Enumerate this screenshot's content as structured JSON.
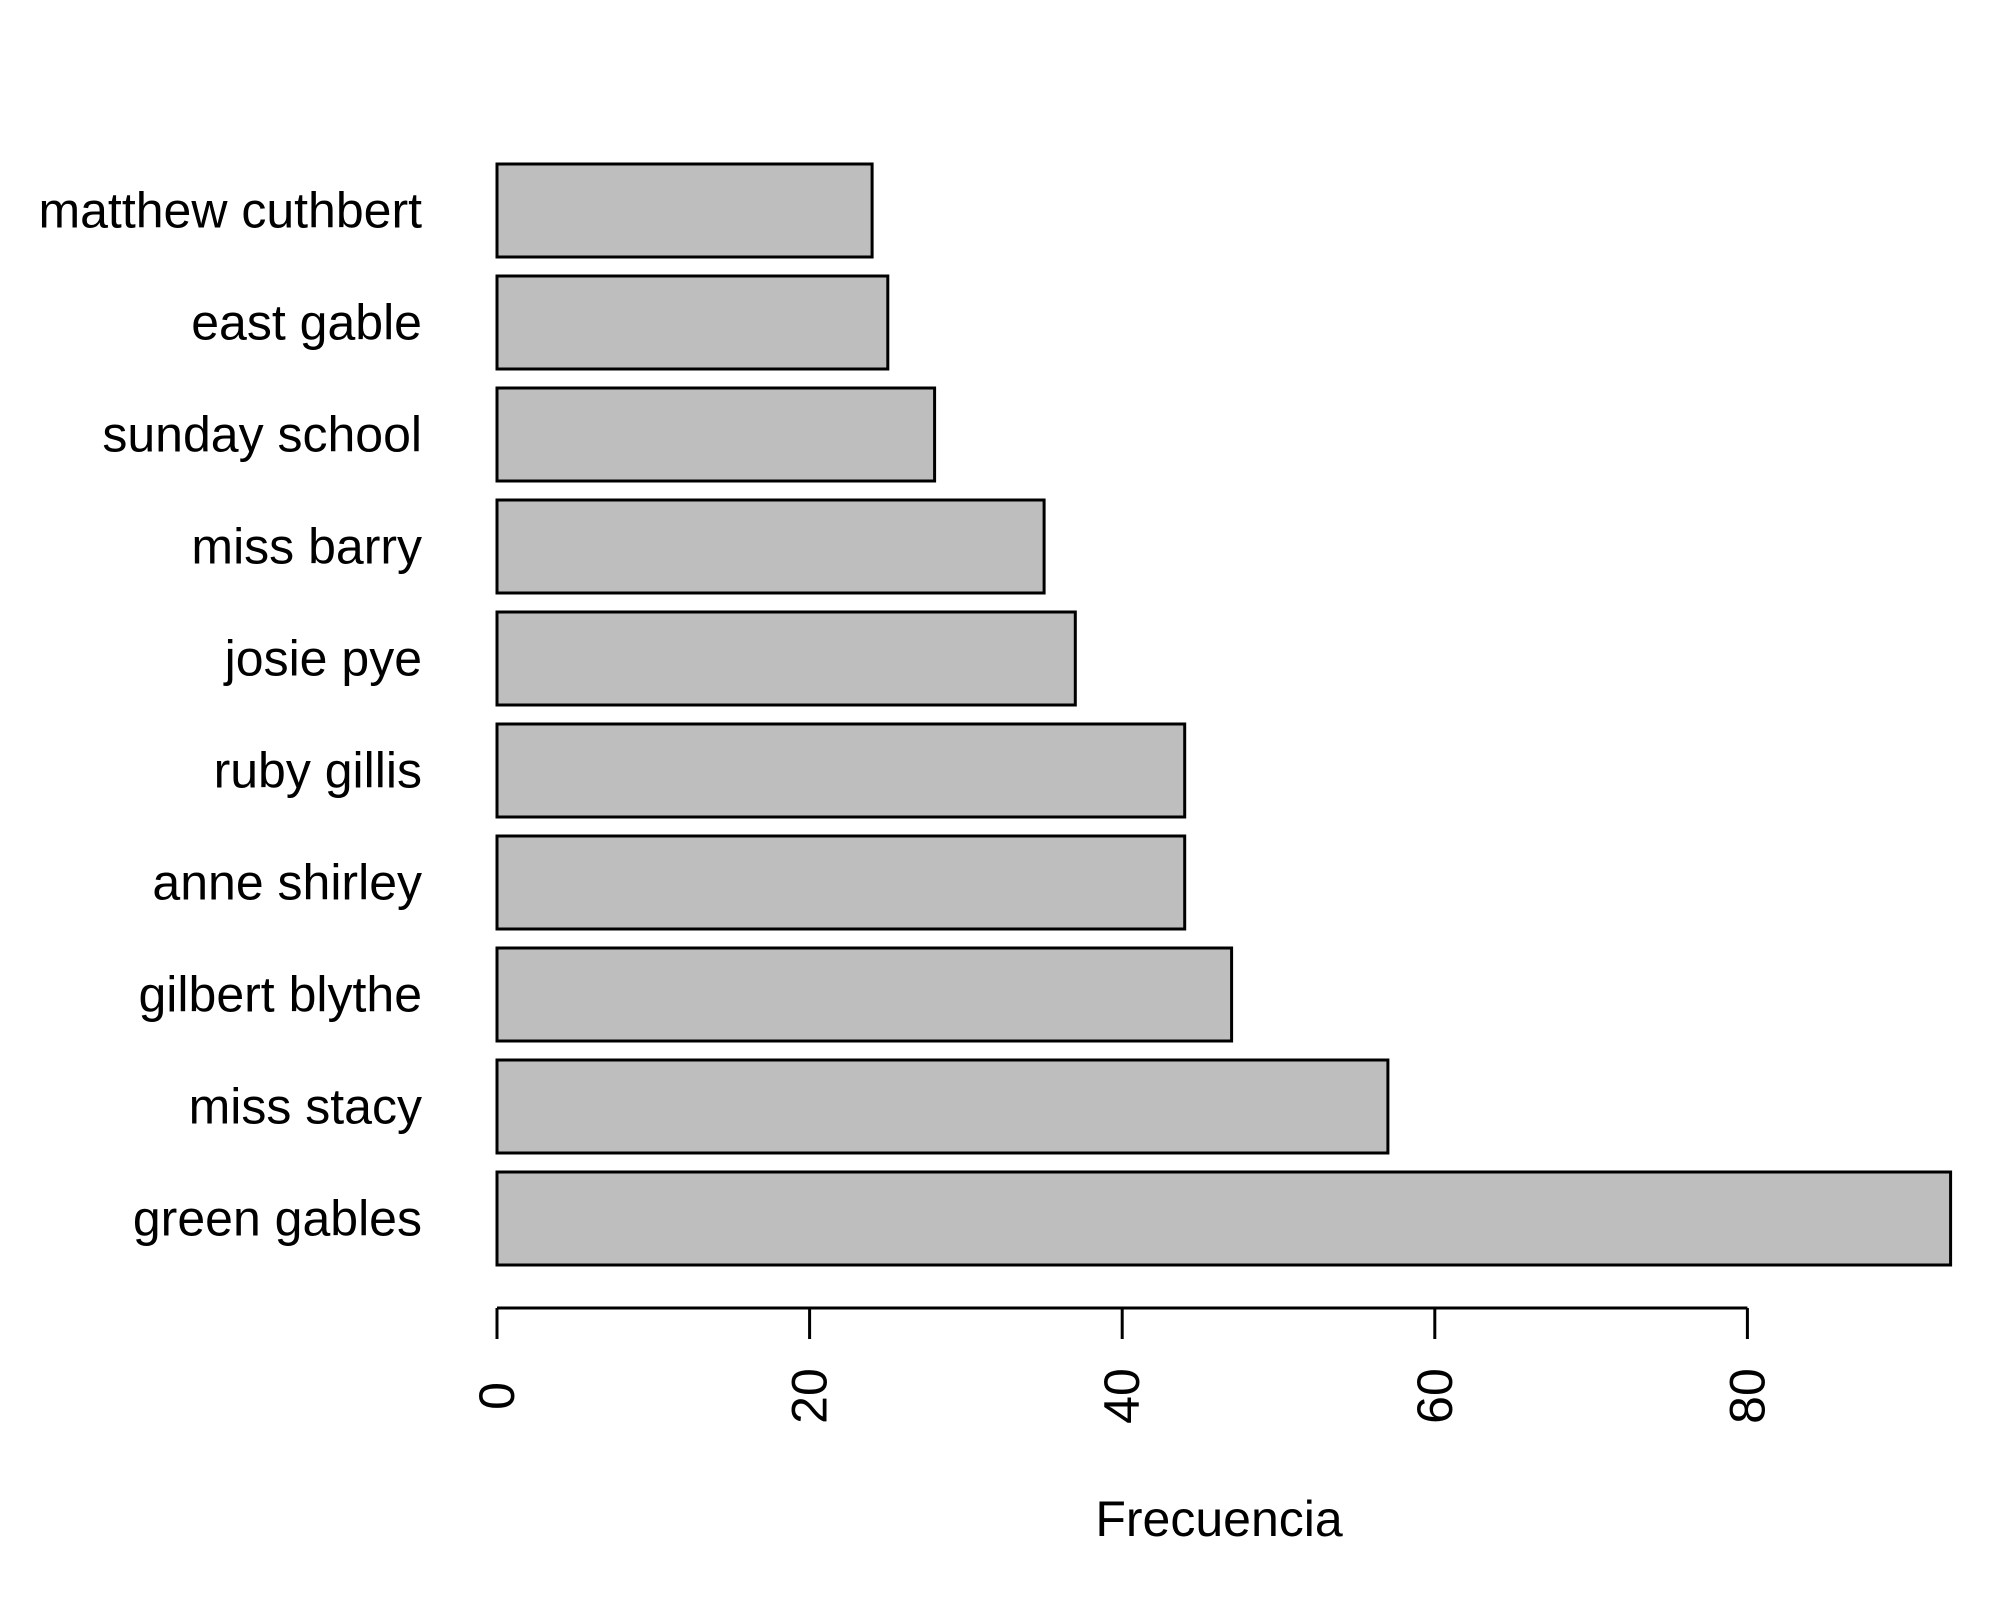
{
  "chart_data": {
    "type": "bar",
    "orientation": "horizontal",
    "categories": [
      "matthew cuthbert",
      "east gable",
      "sunday school",
      "miss barry",
      "josie pye",
      "ruby gillis",
      "anne shirley",
      "gilbert blythe",
      "miss stacy",
      "green gables"
    ],
    "values": [
      24,
      25,
      28,
      35,
      37,
      44,
      44,
      47,
      57,
      93
    ],
    "title": "",
    "xlabel": "Frecuencia",
    "ylabel": "",
    "xlim": [
      0,
      93
    ],
    "x_ticks": [
      "0",
      "20",
      "40",
      "60",
      "80"
    ],
    "grid": false,
    "legend": "none",
    "bar_color": "#bebebe",
    "bar_border_color": "#000000"
  }
}
